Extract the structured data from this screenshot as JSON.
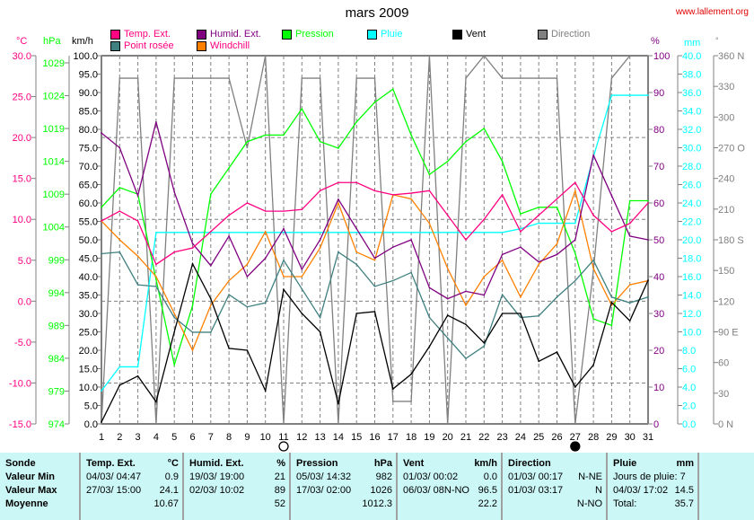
{
  "header": {
    "title": "mars 2009",
    "site": "www.lallement.org"
  },
  "legend": [
    {
      "label": "Temp. Ext.",
      "color": "#ff0080"
    },
    {
      "label": "Humid. Ext.",
      "color": "#800080"
    },
    {
      "label": "Pression",
      "color": "#00ff00"
    },
    {
      "label": "Pluie",
      "color": "#00ffff"
    },
    {
      "label": "Vent",
      "color": "#000000"
    },
    {
      "label": "Direction",
      "color": "#808080"
    },
    {
      "label": "Point rosée",
      "color": "#408080"
    },
    {
      "label": "Windchill",
      "color": "#ff8000"
    }
  ],
  "axes": {
    "temp": {
      "unit": "°C",
      "color": "#ff0080",
      "ticks": [
        "30.0",
        "25.0",
        "20.0",
        "15.0",
        "10.0",
        "5.0",
        "0.0",
        "-5.0",
        "-10.0",
        "-15.0"
      ]
    },
    "pressure": {
      "unit": "hPa",
      "color": "#00ff00",
      "ticks": [
        "1029",
        "1024",
        "1019",
        "1014",
        "1009",
        "1004",
        "999",
        "994",
        "989",
        "984",
        "979",
        "974"
      ]
    },
    "wind": {
      "unit": "km/h",
      "color": "#000000",
      "ticks": [
        "100.0",
        "95.0",
        "90.0",
        "85.0",
        "80.0",
        "75.0",
        "70.0",
        "65.0",
        "60.0",
        "55.0",
        "50.0",
        "45.0",
        "40.0",
        "35.0",
        "30.0",
        "25.0",
        "20.0",
        "15.0",
        "10.0",
        "5.0",
        "0.0"
      ]
    },
    "humidity": {
      "unit": "%",
      "color": "#800080",
      "ticks": [
        "100",
        "90",
        "80",
        "70",
        "60",
        "50",
        "40",
        "30",
        "20",
        "10",
        "0"
      ]
    },
    "rain": {
      "unit": "mm",
      "color": "#00ffff",
      "ticks": [
        "40.0",
        "38.0",
        "36.0",
        "34.0",
        "32.0",
        "30.0",
        "28.0",
        "26.0",
        "24.0",
        "22.0",
        "20.0",
        "18.0",
        "16.0",
        "14.0",
        "12.0",
        "10.0",
        "8.0",
        "6.0",
        "4.0",
        "2.0",
        "0.0"
      ]
    },
    "direction": {
      "unit": "°",
      "color": "#808080",
      "ticks": [
        "360 N",
        "330",
        "300",
        "270 O",
        "240",
        "210",
        "180 S",
        "150",
        "120",
        "90  E",
        "60",
        "30",
        "0    N"
      ]
    }
  },
  "chart_data": {
    "type": "line",
    "title": "mars 2009",
    "x": [
      1,
      2,
      3,
      4,
      5,
      6,
      7,
      8,
      9,
      10,
      11,
      12,
      13,
      14,
      15,
      16,
      17,
      18,
      19,
      20,
      21,
      22,
      23,
      24,
      25,
      26,
      27,
      28,
      29,
      30,
      31
    ],
    "xlabel": "",
    "moon_phases": [
      {
        "day": 11,
        "phase": "full"
      },
      {
        "day": 27,
        "phase": "new"
      }
    ],
    "series": [
      {
        "name": "Temp. Ext.",
        "axis": "temp",
        "ylim": [
          -15,
          30
        ],
        "values": [
          9.8,
          11.0,
          9.8,
          4.5,
          6.0,
          6.5,
          8.5,
          10.5,
          12.0,
          11.0,
          11.0,
          11.2,
          13.5,
          14.5,
          14.5,
          13.5,
          13.0,
          13.2,
          13.5,
          10.5,
          7.5,
          10.0,
          13.0,
          8.5,
          10.5,
          12.5,
          14.5,
          10.5,
          8.5,
          9.5,
          12.0
        ]
      },
      {
        "name": "Humid. Ext.",
        "axis": "humidity",
        "ylim": [
          0,
          100
        ],
        "values": [
          79,
          75,
          62,
          82,
          63,
          49,
          43,
          51,
          40,
          45,
          53,
          42,
          50,
          61,
          53,
          45,
          48,
          50,
          37,
          34,
          36,
          35,
          46,
          48,
          44,
          46,
          50,
          73,
          62,
          51,
          50
        ]
      },
      {
        "name": "Pression",
        "axis": "pressure",
        "ylim": [
          974,
          1029
        ],
        "values": [
          1007,
          1010,
          1009,
          996,
          983,
          992,
          1009,
          1013,
          1017,
          1018,
          1018,
          1022,
          1017,
          1016,
          1020,
          1023,
          1025,
          1018,
          1012,
          1014,
          1017,
          1019,
          1014,
          1006,
          1007,
          1007,
          1000,
          990,
          989,
          1008,
          1008
        ]
      },
      {
        "name": "Pluie",
        "axis": "rain",
        "ylim": [
          0,
          40
        ],
        "values": [
          3.6,
          6.2,
          6.2,
          20.8,
          20.8,
          20.8,
          20.8,
          20.8,
          20.8,
          20.8,
          20.8,
          20.8,
          20.8,
          20.8,
          20.8,
          20.8,
          20.8,
          20.8,
          20.8,
          20.8,
          20.8,
          20.8,
          20.8,
          21.2,
          21.8,
          21.8,
          21.8,
          29.0,
          35.7,
          35.7,
          35.7
        ]
      },
      {
        "name": "Vent",
        "axis": "wind",
        "ylim": [
          0,
          100
        ],
        "values": [
          0.5,
          10.5,
          13,
          6,
          25,
          43.5,
          34,
          20.5,
          20,
          9,
          36.5,
          30,
          25,
          5.5,
          30,
          30.5,
          9.5,
          13.5,
          21,
          29.5,
          27,
          22,
          30,
          30,
          17,
          19.5,
          10,
          16,
          33,
          28,
          39
        ]
      },
      {
        "name": "Direction",
        "axis": "direction",
        "ylim": [
          0,
          360
        ],
        "values": [
          0,
          338,
          338,
          0,
          338,
          338,
          338,
          338,
          270,
          360,
          0,
          338,
          338,
          0,
          338,
          338,
          22,
          22,
          360,
          0,
          338,
          360,
          338,
          338,
          338,
          338,
          0,
          150,
          338,
          360,
          360
        ]
      },
      {
        "name": "Point rosée",
        "axis": "temp",
        "ylim": [
          -15,
          30
        ],
        "values": [
          5.8,
          6.0,
          2.0,
          1.8,
          -2.0,
          -3.8,
          -3.8,
          0.8,
          -0.7,
          -0.2,
          5.0,
          1.5,
          -2.0,
          6.0,
          4.5,
          1.8,
          2.5,
          3.5,
          -2.0,
          -4.5,
          -7.0,
          -5.5,
          0.8,
          -2.0,
          -1.8,
          0.5,
          2.5,
          5.0,
          0.5,
          -0.2,
          0.5
        ]
      },
      {
        "name": "Windchill",
        "axis": "temp",
        "ylim": [
          -15,
          30
        ],
        "values": [
          9.8,
          7.5,
          5.5,
          3.0,
          -1.5,
          -6.0,
          -0.5,
          2.5,
          4.5,
          8.5,
          3.0,
          3.0,
          6.5,
          12.0,
          6.0,
          5.0,
          13.0,
          12.5,
          9.5,
          4.0,
          -0.5,
          3.0,
          5.0,
          0.5,
          4.5,
          7.0,
          13.5,
          4.0,
          -0.5,
          2.0,
          2.5
        ]
      }
    ]
  },
  "stats": {
    "row_labels": [
      "Sonde",
      "Valeur Min",
      "Valeur Max",
      "Moyenne"
    ],
    "temp": {
      "title": "Temp. Ext.",
      "unit": "°C",
      "min_date": "04/03/  04:47",
      "min": "0.9",
      "max_date": "27/03/  15:00",
      "max": "24.1",
      "avg": "10.67"
    },
    "humid": {
      "title": "Humid. Ext.",
      "unit": "%",
      "min_date": "19/03/  19:00",
      "min": "21",
      "max_date": "02/03/  10:02",
      "max": "89",
      "avg": "52"
    },
    "pressure": {
      "title": "Pression",
      "unit": "hPa",
      "min_date": "05/03/  14:32",
      "min": "982",
      "max_date": "17/03/  02:00",
      "max": "1026",
      "avg": "1012.3"
    },
    "wind": {
      "title": "Vent",
      "unit": "km/h",
      "min_date": "01/03/  00:02",
      "min": "0.0",
      "max_date": "06/03/  08N-NO",
      "max": "96.5",
      "avg": "22.2"
    },
    "dir": {
      "title": "Direction",
      "min_date": "01/03/  00:17",
      "min": "N-NE",
      "max_date": "01/03/  03:17",
      "max": "N",
      "avg": "N-NO"
    },
    "rain": {
      "title": "Pluie",
      "unit": "mm",
      "days": "Jours de pluie: 7",
      "max_date": "04/03/  17:02",
      "max": "14.5",
      "total_label": "Total:",
      "total": "35.7"
    }
  }
}
